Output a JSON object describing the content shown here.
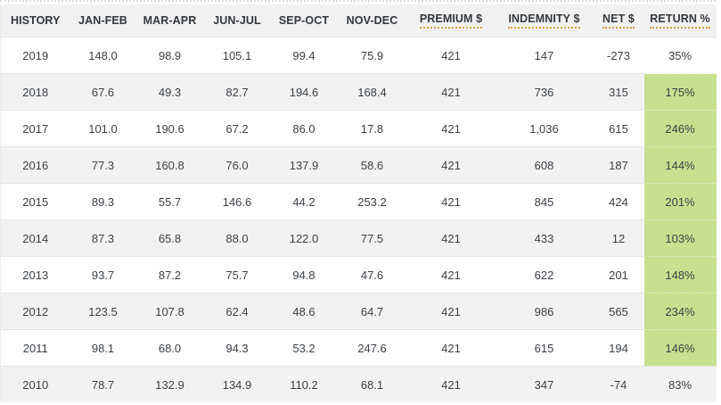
{
  "colors": {
    "highlight_green": "#c6e08f",
    "header_underline": "#e09b3d",
    "header_background": "#f1f1f2",
    "stripe_background": "#f2f2f2"
  },
  "table": {
    "columns": [
      {
        "id": "history",
        "label": "HISTORY",
        "tooltip_underline": false
      },
      {
        "id": "jan-feb",
        "label": "JAN-FEB",
        "tooltip_underline": false
      },
      {
        "id": "mar-apr",
        "label": "MAR-APR",
        "tooltip_underline": false
      },
      {
        "id": "jun-jul",
        "label": "JUN-JUL",
        "tooltip_underline": false
      },
      {
        "id": "sep-oct",
        "label": "SEP-OCT",
        "tooltip_underline": false
      },
      {
        "id": "nov-dec",
        "label": "NOV-DEC",
        "tooltip_underline": false
      },
      {
        "id": "premium",
        "label": "PREMIUM $",
        "tooltip_underline": true
      },
      {
        "id": "indemnity",
        "label": "INDEMNITY $",
        "tooltip_underline": true
      },
      {
        "id": "net",
        "label": "NET $",
        "tooltip_underline": true
      },
      {
        "id": "return",
        "label": "RETURN %",
        "tooltip_underline": true
      }
    ],
    "rows": [
      {
        "year": "2019",
        "values": [
          "148.0",
          "98.9",
          "105.1",
          "99.4",
          "75.9",
          "421",
          "147",
          "-273",
          "35%"
        ],
        "return_highlight": false
      },
      {
        "year": "2018",
        "values": [
          "67.6",
          "49.3",
          "82.7",
          "194.6",
          "168.4",
          "421",
          "736",
          "315",
          "175%"
        ],
        "return_highlight": true
      },
      {
        "year": "2017",
        "values": [
          "101.0",
          "190.6",
          "67.2",
          "86.0",
          "17.8",
          "421",
          "1,036",
          "615",
          "246%"
        ],
        "return_highlight": true
      },
      {
        "year": "2016",
        "values": [
          "77.3",
          "160.8",
          "76.0",
          "137.9",
          "58.6",
          "421",
          "608",
          "187",
          "144%"
        ],
        "return_highlight": true
      },
      {
        "year": "2015",
        "values": [
          "89.3",
          "55.7",
          "146.6",
          "44.2",
          "253.2",
          "421",
          "845",
          "424",
          "201%"
        ],
        "return_highlight": true
      },
      {
        "year": "2014",
        "values": [
          "87.3",
          "65.8",
          "88.0",
          "122.0",
          "77.5",
          "421",
          "433",
          "12",
          "103%"
        ],
        "return_highlight": true
      },
      {
        "year": "2013",
        "values": [
          "93.7",
          "87.2",
          "75.7",
          "94.8",
          "47.6",
          "421",
          "622",
          "201",
          "148%"
        ],
        "return_highlight": true
      },
      {
        "year": "2012",
        "values": [
          "123.5",
          "107.8",
          "62.4",
          "48.6",
          "64.7",
          "421",
          "986",
          "565",
          "234%"
        ],
        "return_highlight": true
      },
      {
        "year": "2011",
        "values": [
          "98.1",
          "68.0",
          "94.3",
          "53.2",
          "247.6",
          "421",
          "615",
          "194",
          "146%"
        ],
        "return_highlight": true
      },
      {
        "year": "2010",
        "values": [
          "78.7",
          "132.9",
          "134.9",
          "110.2",
          "68.1",
          "421",
          "347",
          "-74",
          "83%"
        ],
        "return_highlight": false
      }
    ]
  }
}
